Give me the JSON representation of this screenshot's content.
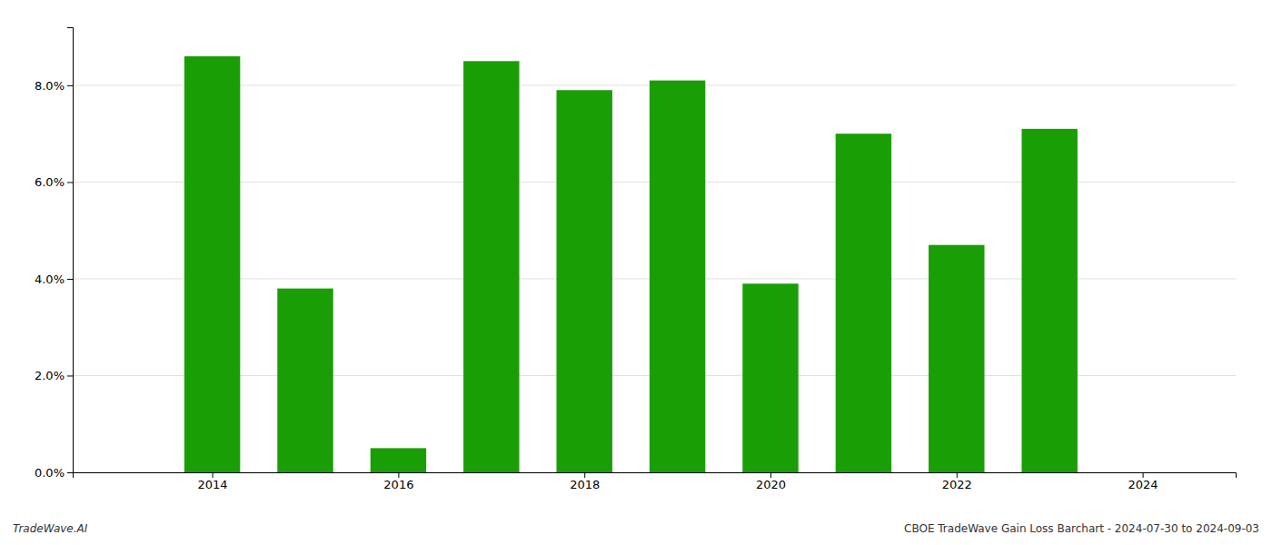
{
  "chart_data": {
    "type": "bar",
    "x": [
      2014,
      2015,
      2016,
      2017,
      2018,
      2019,
      2020,
      2021,
      2022,
      2023
    ],
    "values": [
      0.086,
      0.038,
      0.005,
      0.085,
      0.079,
      0.081,
      0.039,
      0.07,
      0.047,
      0.071
    ],
    "color": "#1a9e06",
    "xlim": [
      2012.5,
      2025.0
    ],
    "xticks": [
      2014,
      2016,
      2018,
      2020,
      2022,
      2024
    ],
    "ylim": [
      0.0,
      0.092
    ],
    "yticks": [
      {
        "value": 0.0,
        "label": "0.0%"
      },
      {
        "value": 0.02,
        "label": "2.0%"
      },
      {
        "value": 0.04,
        "label": "4.0%"
      },
      {
        "value": 0.06,
        "label": "6.0%"
      },
      {
        "value": 0.08,
        "label": "8.0%"
      }
    ],
    "grid": true,
    "annotations": [
      "TradeWave.AI",
      "CBOE TradeWave Gain Loss Barchart - 2024-07-30 to 2024-09-03"
    ]
  }
}
